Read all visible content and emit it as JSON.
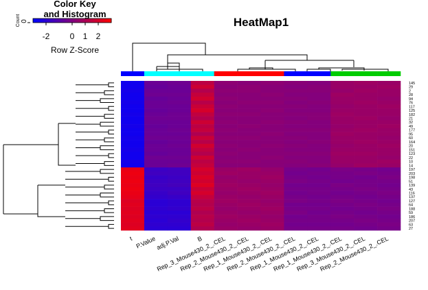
{
  "chart_data": {
    "type": "heatmap",
    "title": "HeatMap1",
    "key_title": "Color Key\nand Histogram",
    "key_ylabel": "Count",
    "key_yticks": [
      0
    ],
    "key_xlabel": "Row Z-Score",
    "key_xlim": [
      -3,
      3
    ],
    "key_xticks": [
      -2,
      0,
      1,
      2
    ],
    "colors": [
      "#0000ff",
      "#800080",
      "#ff0000"
    ],
    "columns": [
      "t",
      "P.Value",
      "adj.P.Val",
      "B",
      "Rep_3_Mouse430_2_.CEL",
      "Rep_2_Mouse430_2_.CEL",
      "Rep_1_Mouse430_2_.CEL",
      "Rep_2_Mouse430_2_.CEL",
      "Rep_1_Mouse430_2_.CEL",
      "Rep_1_Mouse430_2_.CEL",
      "Rep_3_Mouse430_2_.CEL",
      "Rep_2_Mouse430_2_.CEL"
    ],
    "column_colors": [
      "#0000ff",
      "#00ffff",
      "#00ffff",
      "#00ffff",
      "#ff0000",
      "#ff0000",
      "#ff0000",
      "#0000ff",
      "#0000ff",
      "#00cc00",
      "#00cc00",
      "#00cc00"
    ],
    "rows": [
      "145",
      "29",
      "2",
      "28",
      "94",
      "76",
      "117",
      "125",
      "182",
      "21",
      "32",
      "49",
      "177",
      "95",
      "60",
      "164",
      "20",
      "151",
      "123",
      "22",
      "10",
      "14",
      "197",
      "203",
      "198",
      "51",
      "139",
      "43",
      "116",
      "137",
      "127",
      "64",
      "188",
      "59",
      "186",
      "207",
      "63",
      "27"
    ],
    "values": [
      [
        -2.6,
        -0.5,
        -0.4,
        1.4,
        0.3,
        0.2,
        0.3,
        0.2,
        0.1,
        0.6,
        0.7,
        0.6
      ],
      [
        -2.6,
        -0.6,
        -0.5,
        1.8,
        0.2,
        0.3,
        0.2,
        0.1,
        0.2,
        0.6,
        0.6,
        0.7
      ],
      [
        -2.5,
        -0.5,
        -0.5,
        1.2,
        0.3,
        0.3,
        0.2,
        0.2,
        0.2,
        0.5,
        0.7,
        0.6
      ],
      [
        -2.6,
        -0.4,
        -0.4,
        1.6,
        0.2,
        0.2,
        0.3,
        0.1,
        0.1,
        0.7,
        0.6,
        0.6
      ],
      [
        -2.6,
        -0.6,
        -0.5,
        1.9,
        0.3,
        0.2,
        0.2,
        0.2,
        0.1,
        0.6,
        0.6,
        0.5
      ],
      [
        -2.5,
        -0.5,
        -0.4,
        1.3,
        0.2,
        0.3,
        0.3,
        0.1,
        0.2,
        0.6,
        0.7,
        0.6
      ],
      [
        -2.6,
        -0.5,
        -0.5,
        1.7,
        0.3,
        0.2,
        0.2,
        0.2,
        0.1,
        0.5,
        0.6,
        0.7
      ],
      [
        -2.6,
        -0.6,
        -0.5,
        2.0,
        0.2,
        0.2,
        0.3,
        0.1,
        0.1,
        0.6,
        0.6,
        0.6
      ],
      [
        -2.5,
        -0.5,
        -0.4,
        1.5,
        0.3,
        0.3,
        0.2,
        0.2,
        0.2,
        0.7,
        0.6,
        0.6
      ],
      [
        -2.6,
        -0.4,
        -0.4,
        1.2,
        0.2,
        0.2,
        0.2,
        0.1,
        0.2,
        0.6,
        0.7,
        0.5
      ],
      [
        -2.6,
        -0.5,
        -0.5,
        1.8,
        0.3,
        0.2,
        0.3,
        0.2,
        0.1,
        0.6,
        0.6,
        0.6
      ],
      [
        -2.5,
        -0.6,
        -0.5,
        1.4,
        0.2,
        0.3,
        0.2,
        0.1,
        0.1,
        0.5,
        0.6,
        0.7
      ],
      [
        -2.6,
        -0.5,
        -0.4,
        1.6,
        0.3,
        0.2,
        0.2,
        0.2,
        0.2,
        0.6,
        0.7,
        0.6
      ],
      [
        -2.6,
        -0.5,
        -0.5,
        1.1,
        0.2,
        0.2,
        0.3,
        0.1,
        0.1,
        0.7,
        0.6,
        0.6
      ],
      [
        -2.5,
        -0.4,
        -0.4,
        1.7,
        0.3,
        0.3,
        0.2,
        0.2,
        0.1,
        0.6,
        0.6,
        0.5
      ],
      [
        -2.6,
        -0.6,
        -0.5,
        1.3,
        0.2,
        0.2,
        0.2,
        0.1,
        0.2,
        0.6,
        0.7,
        0.6
      ],
      [
        -2.6,
        -0.5,
        -0.4,
        1.9,
        0.3,
        0.2,
        0.3,
        0.2,
        0.1,
        0.5,
        0.6,
        0.7
      ],
      [
        -2.5,
        -0.5,
        -0.5,
        1.5,
        0.2,
        0.3,
        0.2,
        0.1,
        0.1,
        0.6,
        0.6,
        0.6
      ],
      [
        -2.6,
        -0.6,
        -0.5,
        1.2,
        0.3,
        0.2,
        0.2,
        0.2,
        0.2,
        0.7,
        0.7,
        0.6
      ],
      [
        -2.6,
        -0.4,
        -0.4,
        1.8,
        0.2,
        0.2,
        0.3,
        0.1,
        0.1,
        0.6,
        0.6,
        0.5
      ],
      [
        -2.5,
        -0.5,
        -0.5,
        1.4,
        0.3,
        0.3,
        0.2,
        0.2,
        0.1,
        0.6,
        0.6,
        0.7
      ],
      [
        -2.6,
        -0.5,
        -0.4,
        1.6,
        0.2,
        0.2,
        0.2,
        0.1,
        0.2,
        0.5,
        0.7,
        0.6
      ],
      [
        2.5,
        -1.6,
        -1.5,
        2.0,
        0.6,
        0.7,
        0.5,
        -0.2,
        -0.3,
        -0.1,
        -0.2,
        -0.3
      ],
      [
        2.6,
        -1.5,
        -1.5,
        1.8,
        0.7,
        0.6,
        0.6,
        -0.3,
        -0.2,
        -0.2,
        -0.1,
        -0.2
      ],
      [
        2.5,
        -1.7,
        -1.6,
        2.1,
        0.5,
        0.6,
        0.7,
        -0.2,
        -0.3,
        -0.2,
        -0.3,
        -0.1
      ],
      [
        2.6,
        -1.6,
        -1.5,
        1.9,
        0.6,
        0.5,
        0.6,
        -0.1,
        -0.2,
        -0.3,
        -0.2,
        -0.2
      ],
      [
        2.5,
        -1.5,
        -1.4,
        2.2,
        0.7,
        0.6,
        0.5,
        -0.3,
        -0.3,
        -0.1,
        -0.2,
        -0.3
      ],
      [
        2.6,
        -1.6,
        -1.6,
        1.7,
        0.6,
        0.7,
        0.6,
        -0.2,
        -0.2,
        -0.2,
        -0.1,
        -0.2
      ],
      [
        2.5,
        -1.7,
        -1.5,
        2.0,
        0.5,
        0.6,
        0.7,
        -0.3,
        -0.2,
        -0.3,
        -0.2,
        -0.1
      ],
      [
        2.4,
        -1.8,
        -1.7,
        1.6,
        0.6,
        0.5,
        0.6,
        -0.2,
        -0.3,
        -0.2,
        -0.3,
        -0.2
      ],
      [
        2.2,
        -2.0,
        -1.9,
        1.3,
        0.7,
        0.6,
        0.5,
        -0.1,
        -0.2,
        -0.1,
        -0.2,
        -0.3
      ],
      [
        2.3,
        -2.0,
        -1.9,
        1.2,
        0.6,
        0.7,
        0.6,
        -0.3,
        -0.3,
        -0.2,
        -0.1,
        -0.2
      ],
      [
        2.2,
        -1.9,
        -1.8,
        1.4,
        0.5,
        0.6,
        0.7,
        -0.2,
        -0.2,
        -0.3,
        -0.2,
        -0.1
      ],
      [
        2.3,
        -2.0,
        -2.0,
        1.1,
        0.6,
        0.5,
        0.6,
        -0.1,
        -0.3,
        -0.2,
        -0.3,
        -0.2
      ],
      [
        2.2,
        -1.9,
        -1.9,
        1.3,
        0.7,
        0.6,
        0.5,
        -0.3,
        -0.2,
        -0.1,
        -0.2,
        -0.3
      ],
      [
        2.3,
        -2.0,
        -1.8,
        1.2,
        0.6,
        0.7,
        0.6,
        -0.2,
        -0.2,
        -0.2,
        -0.1,
        -0.2
      ],
      [
        2.2,
        -1.9,
        -1.9,
        1.4,
        0.5,
        0.6,
        0.7,
        -0.3,
        -0.3,
        -0.3,
        -0.2,
        -0.1
      ],
      [
        2.3,
        -2.0,
        -2.0,
        1.1,
        0.6,
        0.5,
        0.6,
        -0.2,
        -0.2,
        -0.2,
        -0.3,
        -0.2
      ]
    ]
  }
}
